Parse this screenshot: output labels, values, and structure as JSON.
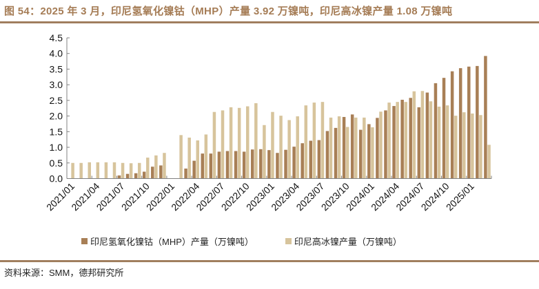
{
  "title": "图 54：2025 年 3 月，印尼氢氧化镍钴（MHP）产量 3.92 万镍吨，印尼高冰镍产量 1.08 万镍吨",
  "source": "资料来源：SMM，德邦研究所",
  "colors": {
    "mhp": "#A87F56",
    "matte": "#D7C49C",
    "accent": "#A57C55"
  },
  "legend": [
    {
      "label": "印尼氢氧化镍钴（MHP）产量（万镍吨）",
      "color": "#A87F56"
    },
    {
      "label": "印尼高冰镍产量（万镍吨）",
      "color": "#D7C49C"
    }
  ],
  "chart_data": {
    "type": "bar",
    "title": "2025 年 3 月，印尼氢氧化镍钴（MHP）产量 3.92 万镍吨，印尼高冰镍产量 1.08 万镍吨",
    "xlabel": "",
    "ylabel": "",
    "ylim": [
      0,
      4.5
    ],
    "yticks": [
      "0.0",
      "0.5",
      "1.0",
      "1.5",
      "2.0",
      "2.5",
      "3.0",
      "3.5",
      "4.0",
      "4.5"
    ],
    "xtick_labels": [
      "2021/01",
      "2021/04",
      "2021/07",
      "2021/10",
      "2022/01",
      "2022/04",
      "2022/07",
      "2022/10",
      "2023/01",
      "2023/04",
      "2023/07",
      "2023/10",
      "2024/01",
      "2024/04",
      "2024/07",
      "2024/10",
      "2025/01"
    ],
    "categories": [
      "2021/01",
      "2021/02",
      "2021/03",
      "2021/04",
      "2021/05",
      "2021/06",
      "2021/07",
      "2021/08",
      "2021/09",
      "2021/10",
      "2021/11",
      "2021/12",
      "2022/01",
      "2022/02",
      "2022/03",
      "2022/04",
      "2022/05",
      "2022/06",
      "2022/07",
      "2022/08",
      "2022/09",
      "2022/10",
      "2022/11",
      "2022/12",
      "2023/01",
      "2023/02",
      "2023/03",
      "2023/04",
      "2023/05",
      "2023/06",
      "2023/07",
      "2023/08",
      "2023/09",
      "2023/10",
      "2023/11",
      "2023/12",
      "2024/01",
      "2024/02",
      "2024/03",
      "2024/04",
      "2024/05",
      "2024/06",
      "2024/07",
      "2024/08",
      "2024/09",
      "2024/10",
      "2024/11",
      "2024/12",
      "2025/01",
      "2025/02",
      "2025/03"
    ],
    "series": [
      {
        "name": "印尼氢氧化镍钴（MHP）产量（万镍吨）",
        "values": [
          0,
          0,
          0,
          0,
          0,
          0,
          0.1,
          0.15,
          0.17,
          0.22,
          0.38,
          0.42,
          0,
          0,
          0.32,
          0.57,
          0.8,
          0.8,
          0.86,
          0.88,
          0.88,
          0.86,
          0.93,
          0.94,
          0.91,
          0.82,
          0.92,
          1.02,
          1.13,
          1.21,
          1.23,
          1.52,
          1.62,
          1.97,
          2.05,
          1.56,
          1.74,
          1.94,
          2.18,
          2.32,
          2.52,
          2.58,
          2.28,
          2.75,
          3.05,
          3.22,
          3.43,
          3.53,
          3.58,
          3.6,
          3.92
        ]
      },
      {
        "name": "印尼高冰镍产量（万镍吨）",
        "values": [
          0.5,
          0.5,
          0.52,
          0.52,
          0.52,
          0.52,
          0.5,
          0.49,
          0.5,
          0.67,
          0.74,
          0.82,
          0,
          1.39,
          1.31,
          1.22,
          1.41,
          2.13,
          2.18,
          2.28,
          2.26,
          2.31,
          2.41,
          1.71,
          2.13,
          2.01,
          1.87,
          1.99,
          2.34,
          2.43,
          2.45,
          1.95,
          1.99,
          1.65,
          1.95,
          1.95,
          1.64,
          2.14,
          2.43,
          2.45,
          2.45,
          2.79,
          2.8,
          2.47,
          2.3,
          2.34,
          2.01,
          2.12,
          2.08,
          2.03,
          1.08
        ]
      }
    ],
    "grid": false,
    "legend_position": "bottom"
  }
}
